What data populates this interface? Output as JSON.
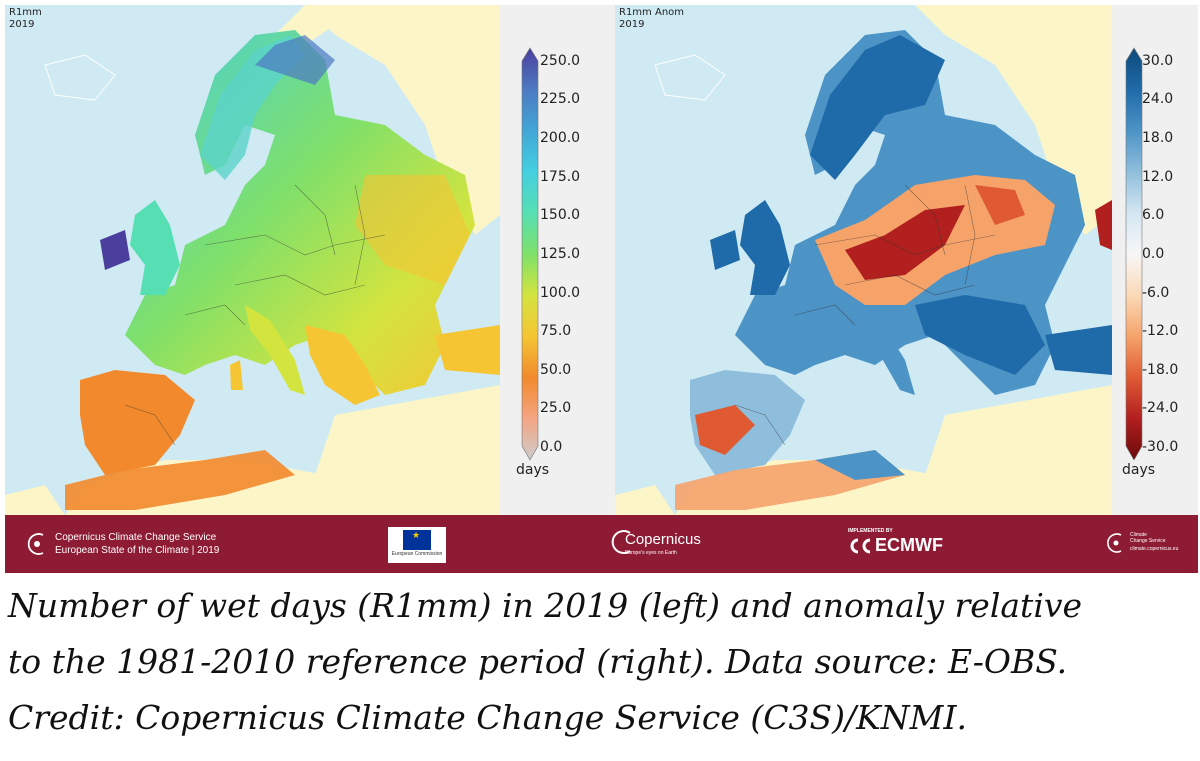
{
  "colors": {
    "sea": "#cfeaf3",
    "non_data_land": "#fbf5c8",
    "banner": "#8e1b34",
    "colorbar_bg": "#f0f0f0"
  },
  "left_map": {
    "title": "R1mm",
    "year": "2019",
    "colorbar": {
      "ticks": [
        "250.0",
        "225.0",
        "200.0",
        "175.0",
        "150.0",
        "125.0",
        "100.0",
        "75.0",
        "50.0",
        "25.0",
        "0.0"
      ],
      "unit": "days",
      "colors": [
        "#4a3f9c",
        "#4d79c2",
        "#42a6d6",
        "#44cfe0",
        "#57dfb4",
        "#7fe06a",
        "#d3e43f",
        "#f5c534",
        "#f28a2d",
        "#f4a584",
        "#cccccc"
      ]
    }
  },
  "right_map": {
    "title": "R1mm Anom",
    "year": "2019",
    "colorbar": {
      "ticks": [
        "30.0",
        "24.0",
        "18.0",
        "12.0",
        "6.0",
        "0.0",
        "-6.0",
        "-12.0",
        "-18.0",
        "-24.0",
        "-30.0"
      ],
      "unit": "days",
      "colors": [
        "#0c4a7a",
        "#1f6aa8",
        "#4c93c6",
        "#8fbedc",
        "#d3e6f1",
        "#f7f7f7",
        "#fbd9b7",
        "#f6a36a",
        "#df5a33",
        "#b11f1f",
        "#6b0a0a"
      ]
    }
  },
  "banner": {
    "c3s_line1": "Copernicus Climate Change Service",
    "c3s_line2": "European State of the Climate | 2019",
    "eu_logo_text": "European Commission",
    "copernicus_logo": "Copernicus",
    "copernicus_tagline": "Europe's eyes on Earth",
    "ecmwf_implemented": "IMPLEMENTED BY",
    "ecmwf_logo": "ECMWF",
    "right_logo_line1": "Climate",
    "right_logo_line2": "Change Service",
    "right_logo_url": "climate.copernicus.eu"
  },
  "caption": {
    "line1": "Number of wet days (R1mm) in 2019 (left) and anomaly relative",
    "line2": "to the 1981-2010 reference period (right). Data source: E-OBS.",
    "line3": "Credit: Copernicus Climate Change Service (C3S)/KNMI."
  }
}
